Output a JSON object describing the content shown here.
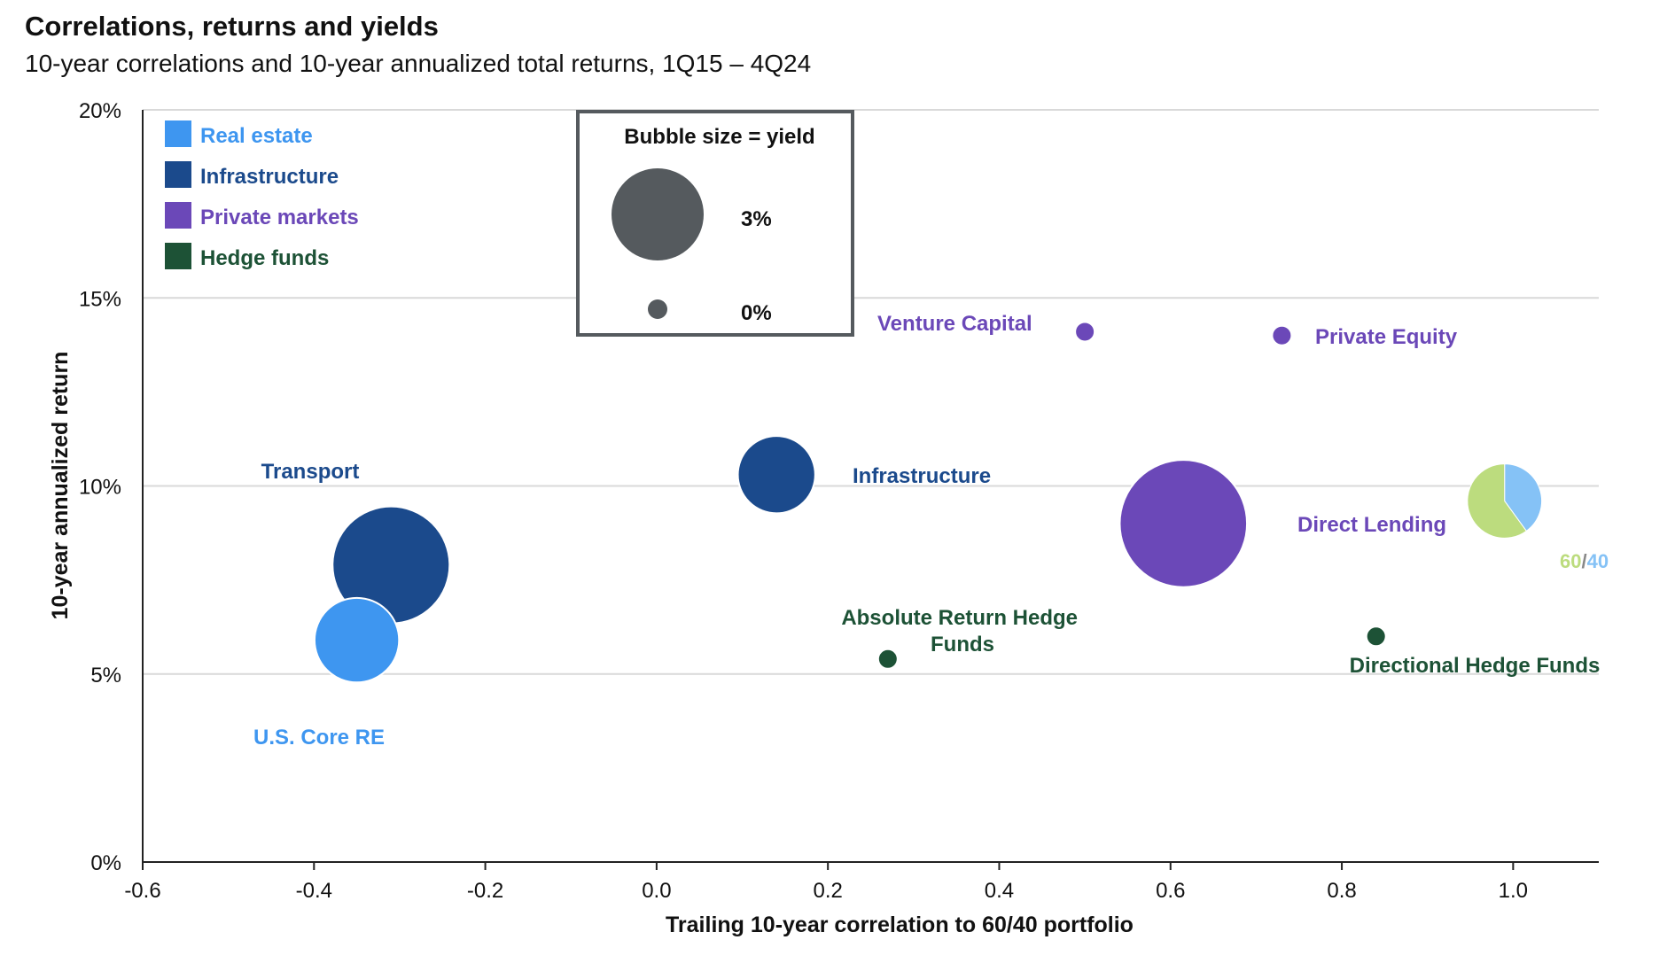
{
  "title": "Correlations, returns and yields",
  "subtitle": "10-year correlations and 10-year annualized total returns, 1Q15 – 4Q24",
  "colors": {
    "real_estate": "#3e96f0",
    "infrastructure": "#1b4a8c",
    "private_markets": "#6b48b8",
    "hedge_funds": "#1d5236",
    "sixty": "#bcdc7e",
    "forty": "#85c2f6",
    "legend_bubble": "#555a5e"
  },
  "legend": {
    "items": [
      {
        "label": "Real estate",
        "color": "#3e96f0"
      },
      {
        "label": "Infrastructure",
        "color": "#1b4a8c"
      },
      {
        "label": "Private markets",
        "color": "#6b48b8"
      },
      {
        "label": "Hedge funds",
        "color": "#1d5236"
      }
    ],
    "placement": "top-left"
  },
  "size_legend": {
    "title": "Bubble size = yield",
    "entries": [
      {
        "label": "3%",
        "yield": 3
      },
      {
        "label": "0%",
        "yield": 0
      }
    ]
  },
  "chart_data": {
    "type": "scatter",
    "title": "Correlations, returns and yields",
    "subtitle": "10-year correlations and 10-year annualized total returns, 1Q15 – 4Q24",
    "xlabel": "Trailing 10-year correlation to 60/40 portfolio",
    "ylabel": "10-year annualized return",
    "xlim": [
      -0.6,
      1.1
    ],
    "ylim": [
      0,
      20
    ],
    "x_ticks": [
      -0.6,
      -0.4,
      -0.2,
      0.0,
      0.2,
      0.4,
      0.6,
      0.8,
      1.0
    ],
    "x_tick_labels": [
      "-0.6",
      "-0.4",
      "-0.2",
      "0.0",
      "0.2",
      "0.4",
      "0.6",
      "0.8",
      "1.0"
    ],
    "y_ticks": [
      0,
      5,
      10,
      15,
      20
    ],
    "y_tick_labels": [
      "0%",
      "5%",
      "10%",
      "15%",
      "20%"
    ],
    "grid": "horizontal",
    "bubble_size_encodes": "yield",
    "points": [
      {
        "name": "Transport",
        "category": "Infrastructure",
        "x": -0.31,
        "y": 7.9,
        "yield": 5.4
      },
      {
        "name": "U.S. Core RE",
        "category": "Real estate",
        "x": -0.35,
        "y": 5.9,
        "yield": 2.4
      },
      {
        "name": "Infrastructure",
        "category": "Infrastructure",
        "x": 0.14,
        "y": 10.3,
        "yield": 1.9
      },
      {
        "name": "Venture Capital",
        "category": "Private markets",
        "x": 0.5,
        "y": 14.1,
        "yield": 0.0
      },
      {
        "name": "Private Equity",
        "category": "Private markets",
        "x": 0.73,
        "y": 14.0,
        "yield": 0.0
      },
      {
        "name": "Direct Lending",
        "category": "Private markets",
        "x": 0.615,
        "y": 9.0,
        "yield": 6.6
      },
      {
        "name": "Absolute Return Hedge Funds",
        "category": "Hedge funds",
        "x": 0.27,
        "y": 5.4,
        "yield": 0.0
      },
      {
        "name": "Directional Hedge Funds",
        "category": "Hedge funds",
        "x": 0.84,
        "y": 6.0,
        "yield": 0.0
      }
    ],
    "pie_point": {
      "name": "60/40",
      "x": 0.99,
      "y": 9.6,
      "yield": 1.7,
      "slices": [
        {
          "label": "60",
          "value": 60
        },
        {
          "label": "40",
          "value": 40
        }
      ],
      "slash": "/"
    }
  }
}
